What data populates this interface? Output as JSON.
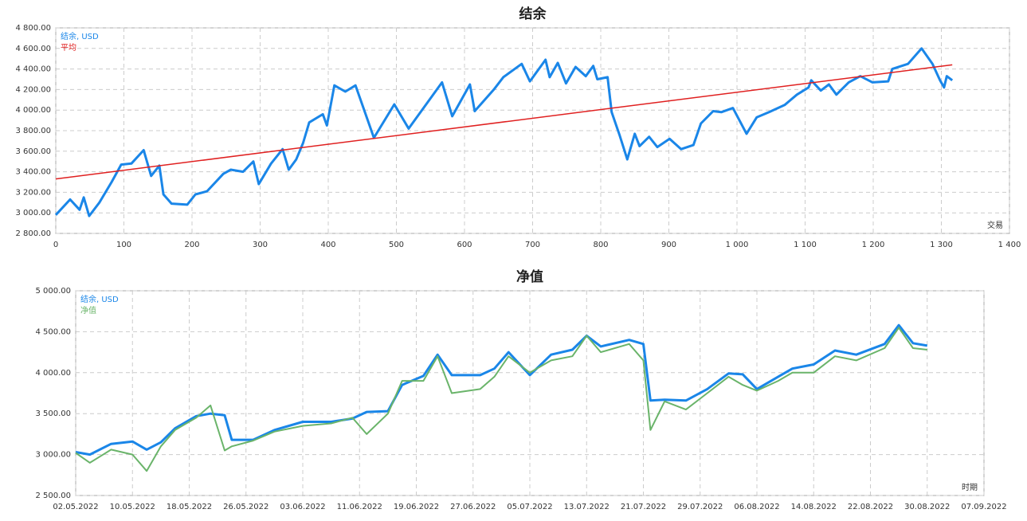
{
  "chart_data": [
    {
      "type": "line",
      "title": "结余",
      "x_label": "交易",
      "grid": true,
      "legend": "upper left",
      "xlim": [
        0,
        1400
      ],
      "xticks": [
        0,
        100,
        200,
        300,
        400,
        500,
        600,
        700,
        800,
        900,
        {
          "value": 1000,
          "label": "1 000"
        },
        {
          "value": 1100,
          "label": "1 100"
        },
        {
          "value": 1200,
          "label": "1 200"
        },
        {
          "value": 1300,
          "label": "1 300"
        },
        {
          "value": 1400,
          "label": "1 400"
        }
      ],
      "ylim": [
        2800,
        4800
      ],
      "yticks": [
        {
          "value": 2800,
          "label": "2 800.00"
        },
        {
          "value": 3000,
          "label": "3 000.00"
        },
        {
          "value": 3200,
          "label": "3 200.00"
        },
        {
          "value": 3400,
          "label": "3 400.00"
        },
        {
          "value": 3600,
          "label": "3 600.00"
        },
        {
          "value": 3800,
          "label": "3 800.00"
        },
        {
          "value": 4000,
          "label": "4 000.00"
        },
        {
          "value": 4200,
          "label": "4 200.00"
        },
        {
          "value": 4400,
          "label": "4 400.00"
        },
        {
          "value": 4600,
          "label": "4 600.00"
        },
        {
          "value": 4800,
          "label": "4 800.00"
        }
      ],
      "series": [
        {
          "name": "结余, USD",
          "color": "#1a86e8",
          "x": [
            0,
            21,
            35,
            41,
            49,
            64,
            82,
            96,
            111,
            129,
            140,
            152,
            158,
            170,
            193,
            205,
            222,
            246,
            257,
            275,
            290,
            298,
            316,
            333,
            342,
            353,
            363,
            372,
            392,
            398,
            409,
            425,
            440,
            467,
            497,
            518,
            567,
            582,
            608,
            615,
            643,
            657,
            684,
            696,
            719,
            725,
            737,
            749,
            763,
            778,
            789,
            795,
            810,
            816,
            828,
            839,
            850,
            857,
            871,
            883,
            901,
            918,
            936,
            947,
            965,
            977,
            994,
            1014,
            1029,
            1047,
            1070,
            1088,
            1105,
            1109,
            1123,
            1135,
            1146,
            1164,
            1181,
            1199,
            1222,
            1228,
            1251,
            1271,
            1287,
            1298,
            1304,
            1308,
            1316
          ],
          "values": [
            2980,
            3130,
            3030,
            3150,
            2970,
            3100,
            3300,
            3470,
            3480,
            3610,
            3360,
            3460,
            3180,
            3090,
            3080,
            3180,
            3210,
            3380,
            3420,
            3400,
            3500,
            3280,
            3480,
            3620,
            3420,
            3520,
            3680,
            3880,
            3960,
            3850,
            4240,
            4180,
            4240,
            3730,
            4056,
            3820,
            4270,
            3940,
            4250,
            3990,
            4200,
            4320,
            4450,
            4280,
            4490,
            4320,
            4460,
            4260,
            4420,
            4330,
            4430,
            4300,
            4320,
            3980,
            3750,
            3520,
            3770,
            3650,
            3740,
            3640,
            3720,
            3620,
            3660,
            3870,
            3990,
            3980,
            4020,
            3770,
            3930,
            3980,
            4050,
            4150,
            4220,
            4290,
            4190,
            4250,
            4150,
            4270,
            4330,
            4270,
            4280,
            4400,
            4450,
            4600,
            4450,
            4290,
            4220,
            4330,
            4290
          ]
        },
        {
          "name": "平均",
          "color": "#e02020",
          "x": [
            0,
            1316
          ],
          "values": [
            3330,
            4440
          ]
        }
      ]
    },
    {
      "type": "line",
      "title": "净值",
      "x_label": "时期",
      "grid": true,
      "legend": "upper left",
      "xlim": [
        "02.05.2022",
        "07.09.2022"
      ],
      "xticks": [
        "02.05.2022",
        "10.05.2022",
        "18.05.2022",
        "26.05.2022",
        "03.06.2022",
        "11.06.2022",
        "19.06.2022",
        "27.06.2022",
        "05.07.2022",
        "13.07.2022",
        "21.07.2022",
        "29.07.2022",
        "06.08.2022",
        "14.08.2022",
        "22.08.2022",
        "30.08.2022",
        "07.09.2022"
      ],
      "ylim": [
        2500,
        5000
      ],
      "yticks": [
        {
          "value": 2500,
          "label": "2 500.00"
        },
        {
          "value": 3000,
          "label": "3 000.00"
        },
        {
          "value": 3500,
          "label": "3 500.00"
        },
        {
          "value": 4000,
          "label": "4 000.00"
        },
        {
          "value": 4500,
          "label": "4 500.00"
        },
        {
          "value": 5000,
          "label": "5 000.00"
        }
      ],
      "x": [
        "02.05.2022",
        "04.05.2022",
        "07.05.2022",
        "10.05.2022",
        "12.05.2022",
        "14.05.2022",
        "16.05.2022",
        "19.05.2022",
        "21.05.2022",
        "23.05.2022",
        "24.05.2022",
        "27.05.2022",
        "30.05.2022",
        "03.06.2022",
        "07.06.2022",
        "10.06.2022",
        "12.06.2022",
        "15.06.2022",
        "17.06.2022",
        "20.06.2022",
        "22.06.2022",
        "24.06.2022",
        "28.06.2022",
        "30.06.2022",
        "02.07.2022",
        "05.07.2022",
        "08.07.2022",
        "11.07.2022",
        "13.07.2022",
        "15.07.2022",
        "19.07.2022",
        "21.07.2022",
        "22.07.2022",
        "24.07.2022",
        "27.07.2022",
        "30.07.2022",
        "02.08.2022",
        "04.08.2022",
        "06.08.2022",
        "09.08.2022",
        "11.08.2022",
        "14.08.2022",
        "17.08.2022",
        "20.08.2022",
        "24.08.2022",
        "26.08.2022",
        "28.08.2022",
        "30.08.2022"
      ],
      "series": [
        {
          "name": "结余, USD",
          "color": "#1a86e8",
          "values": [
            3030,
            3000,
            3130,
            3160,
            3060,
            3150,
            3320,
            3470,
            3500,
            3480,
            3180,
            3180,
            3300,
            3400,
            3400,
            3440,
            3520,
            3530,
            3850,
            3960,
            4220,
            3970,
            3970,
            4050,
            4250,
            3970,
            4220,
            4280,
            4450,
            4320,
            4400,
            4350,
            3660,
            3670,
            3660,
            3800,
            3990,
            3980,
            3800,
            3950,
            4050,
            4100,
            4270,
            4220,
            4350,
            4580,
            4360,
            4330
          ]
        },
        {
          "name": "净值",
          "color": "#6ab46a",
          "values": [
            3020,
            2900,
            3060,
            3000,
            2800,
            3100,
            3300,
            3450,
            3600,
            3050,
            3100,
            3170,
            3280,
            3350,
            3380,
            3450,
            3250,
            3500,
            3900,
            3900,
            4200,
            3750,
            3800,
            3950,
            4200,
            4000,
            4150,
            4200,
            4450,
            4250,
            4350,
            4150,
            3300,
            3650,
            3550,
            3750,
            3950,
            3850,
            3780,
            3900,
            4000,
            4000,
            4200,
            4150,
            4300,
            4550,
            4300,
            4280
          ]
        }
      ]
    }
  ]
}
